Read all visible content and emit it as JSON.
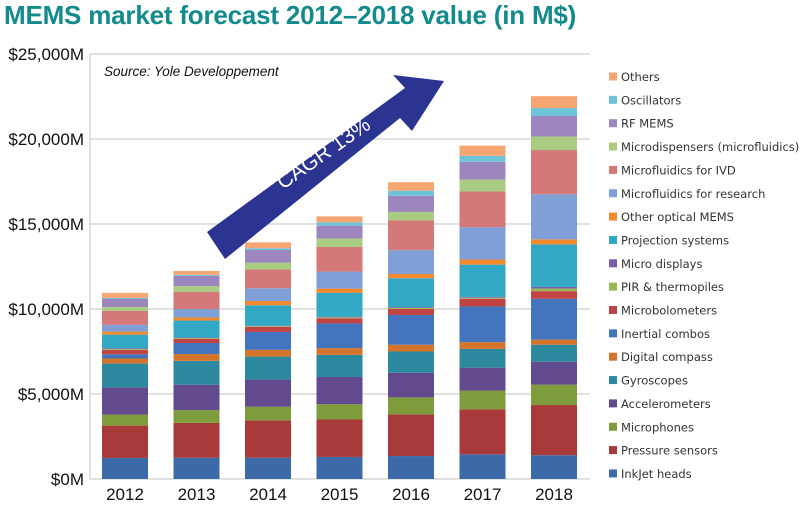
{
  "chart_data": {
    "type": "bar",
    "stacked": true,
    "title": "MEMS market forecast 2012–2018 value (in M$)",
    "source": "Source: Yole Developpement",
    "annotation": "CAGR 13%",
    "xlabel": "",
    "ylabel": "",
    "ylim": [
      0,
      25000
    ],
    "yticks": [
      0,
      5000,
      10000,
      15000,
      20000,
      25000
    ],
    "ytick_labels": [
      "$0M",
      "$5,000M",
      "$10,000M",
      "$15,000M",
      "$20,000M",
      "$25,000M"
    ],
    "grid": true,
    "legend_position": "right",
    "categories": [
      "2012",
      "2013",
      "2014",
      "2015",
      "2016",
      "2017",
      "2018"
    ],
    "series": [
      {
        "name": "InkJet heads",
        "color": "#3c6aa8",
        "values": [
          1240,
          1250,
          1250,
          1300,
          1350,
          1450,
          1400
        ]
      },
      {
        "name": "Pressure sensors",
        "color": "#a83a3a",
        "values": [
          1900,
          2050,
          2200,
          2200,
          2450,
          2650,
          2950
        ]
      },
      {
        "name": "Microphones",
        "color": "#7f9c3c",
        "values": [
          650,
          750,
          800,
          900,
          1000,
          1100,
          1200
        ]
      },
      {
        "name": "Accelerometers",
        "color": "#614a8e",
        "values": [
          1600,
          1500,
          1600,
          1600,
          1450,
          1350,
          1350
        ]
      },
      {
        "name": "Gyroscopes",
        "color": "#2d8a9e",
        "values": [
          1400,
          1400,
          1350,
          1300,
          1250,
          1100,
          1000
        ]
      },
      {
        "name": "Digital compass",
        "color": "#d4752e",
        "values": [
          300,
          400,
          400,
          400,
          400,
          400,
          300
        ]
      },
      {
        "name": "Inertial combos",
        "color": "#4275bd",
        "values": [
          250,
          650,
          1050,
          1450,
          1750,
          2100,
          2400
        ]
      },
      {
        "name": "Microbolometers",
        "color": "#c04444",
        "values": [
          250,
          250,
          300,
          300,
          350,
          450,
          450
        ]
      },
      {
        "name": "PIR & thermopiles",
        "color": "#98b954",
        "values": [
          50,
          40,
          40,
          60,
          60,
          60,
          150
        ]
      },
      {
        "name": "Micro displays",
        "color": "#7a5ea8",
        "values": [
          50,
          30,
          30,
          40,
          50,
          50,
          100
        ]
      },
      {
        "name": "Projection systems",
        "color": "#33a8c4",
        "values": [
          800,
          1000,
          1200,
          1400,
          1700,
          1900,
          2500
        ]
      },
      {
        "name": "Other optical MEMS",
        "color": "#f28a2e",
        "values": [
          180,
          180,
          250,
          250,
          250,
          300,
          300
        ]
      },
      {
        "name": "Microfluidics for research",
        "color": "#7f9fd6",
        "values": [
          400,
          500,
          750,
          1000,
          1400,
          1900,
          2650
        ]
      },
      {
        "name": "Microfluidics for IVD",
        "color": "#d4787a",
        "values": [
          820,
          1000,
          1100,
          1450,
          1750,
          2100,
          2600
        ]
      },
      {
        "name": "Microdispensers (microfluidics)",
        "color": "#a9cc82",
        "values": [
          230,
          350,
          400,
          500,
          500,
          700,
          800
        ]
      },
      {
        "name": "RF MEMS",
        "color": "#9c86bd",
        "values": [
          470,
          600,
          750,
          750,
          950,
          1050,
          1200
        ]
      },
      {
        "name": "Oscillators",
        "color": "#6fc3d9",
        "values": [
          60,
          60,
          100,
          200,
          300,
          350,
          470
        ]
      },
      {
        "name": "Others",
        "color": "#f6a673",
        "values": [
          300,
          230,
          350,
          350,
          500,
          600,
          700
        ]
      }
    ]
  }
}
